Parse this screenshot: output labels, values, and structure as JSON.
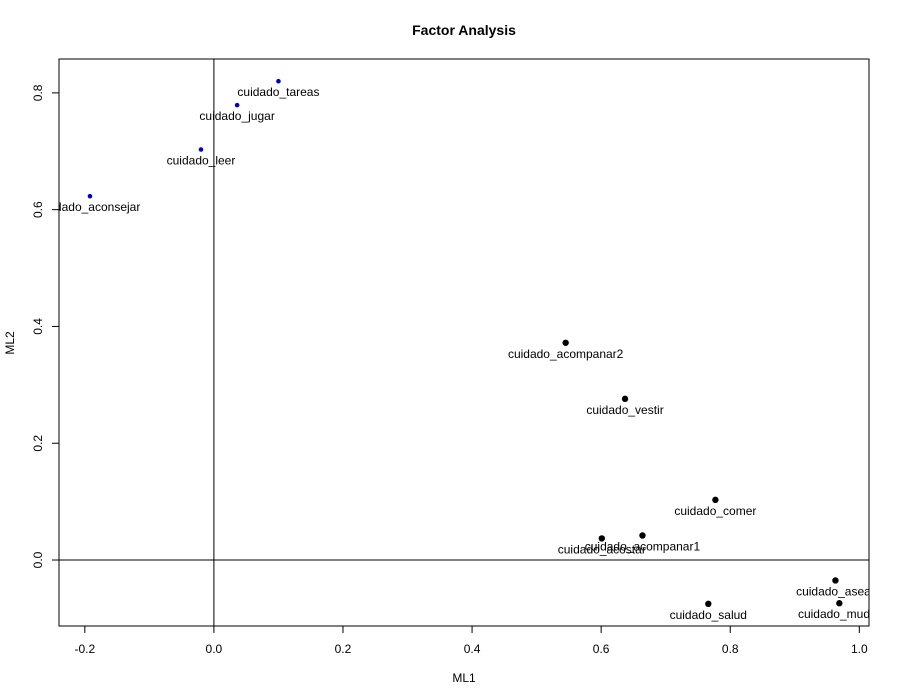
{
  "chart_data": {
    "type": "scatter",
    "title": "Factor Analysis",
    "xlabel": "ML1",
    "ylabel": "ML2",
    "xlim": [
      -0.24,
      1.015
    ],
    "ylim": [
      -0.113,
      0.858
    ],
    "x_ticks": [
      -0.2,
      0.0,
      0.2,
      0.4,
      0.6,
      0.8,
      1.0
    ],
    "x_tick_labels": [
      "-0.2",
      "0.0",
      "0.2",
      "0.4",
      "0.6",
      "0.8",
      "1.0"
    ],
    "y_ticks": [
      0.0,
      0.2,
      0.4,
      0.6,
      0.8
    ],
    "y_tick_labels": [
      "0.0",
      "0.2",
      "0.4",
      "0.6",
      "0.8"
    ],
    "reference_lines": {
      "x": 0,
      "y": 0
    },
    "grid": false,
    "colors": {
      "group1": "#0000cc",
      "group2": "#000000"
    },
    "points": [
      {
        "label": "cuidado_tareas",
        "x": 0.1,
        "y": 0.82,
        "group": "group1"
      },
      {
        "label": "cuidado_jugar",
        "x": 0.036,
        "y": 0.779,
        "group": "group1"
      },
      {
        "label": "cuidado_leer",
        "x": -0.02,
        "y": 0.703,
        "group": "group1"
      },
      {
        "label": "cuidado_aconsejar",
        "x": -0.192,
        "y": 0.623,
        "group": "group1"
      },
      {
        "label": "cuidado_acompanar2",
        "x": 0.545,
        "y": 0.372,
        "group": "group2"
      },
      {
        "label": "cuidado_vestir",
        "x": 0.637,
        "y": 0.276,
        "group": "group2"
      },
      {
        "label": "cuidado_comer",
        "x": 0.777,
        "y": 0.103,
        "group": "group2"
      },
      {
        "label": "cuidado_acompanar1",
        "x": 0.664,
        "y": 0.042,
        "group": "group2"
      },
      {
        "label": "cuidado_acostar",
        "x": 0.601,
        "y": 0.037,
        "group": "group2"
      },
      {
        "label": "cuidado_asear",
        "x": 0.963,
        "y": -0.035,
        "group": "group2"
      },
      {
        "label": "cuidado_salud",
        "x": 0.766,
        "y": -0.075,
        "group": "group2"
      },
      {
        "label": "cuidado_mudar",
        "x": 0.969,
        "y": -0.074,
        "group": "group2"
      }
    ]
  }
}
